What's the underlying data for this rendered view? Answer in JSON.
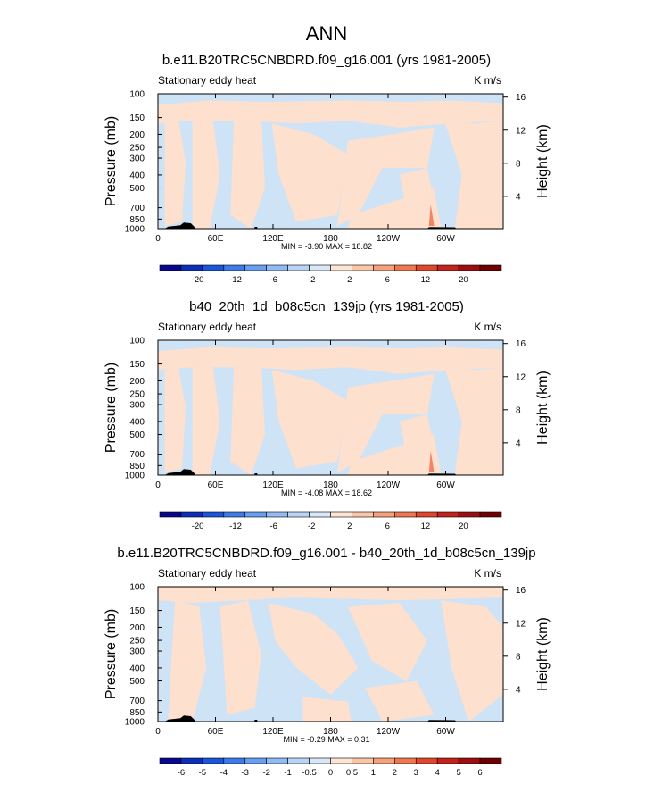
{
  "figure_title": "ANN",
  "colors": {
    "warm_fill": "#fde0cd",
    "cool_fill": "#cfe3f7",
    "warm_strong": "#f06b4a",
    "topo": "#000000"
  },
  "chart_data": [
    {
      "type": "heatmap",
      "title": "b.e11.B20TRC5CNBDRD.f09_g16.001 (yrs 1981-2005)",
      "left_string": "Stationary eddy heat",
      "right_string": "K m/s",
      "xlabel": "",
      "ylabel": "Pressure (mb)",
      "ylabel_right": "Height (km)",
      "x_ticks": [
        "0",
        "60E",
        "120E",
        "180",
        "120W",
        "60W"
      ],
      "y_ticks": [
        "100",
        "150",
        "200",
        "250",
        "300",
        "400",
        "500",
        "700",
        "850",
        "1000"
      ],
      "y_right_ticks": [
        "4",
        "8",
        "12",
        "16"
      ],
      "min_max_text": "MIN =   -3.90  MAX =   18.82",
      "min": -3.9,
      "max": 18.82,
      "colorbar_labels": [
        "-20",
        "-12",
        "-6",
        "-2",
        "2",
        "6",
        "12",
        "20"
      ],
      "colorbar_levels": 16
    },
    {
      "type": "heatmap",
      "title": "b40_20th_1d_b08c5cn_139jp (yrs 1981-2005)",
      "left_string": "Stationary eddy heat",
      "right_string": "K m/s",
      "xlabel": "",
      "ylabel": "Pressure (mb)",
      "ylabel_right": "Height (km)",
      "x_ticks": [
        "0",
        "60E",
        "120E",
        "180",
        "120W",
        "60W"
      ],
      "y_ticks": [
        "100",
        "150",
        "200",
        "250",
        "300",
        "400",
        "500",
        "700",
        "850",
        "1000"
      ],
      "y_right_ticks": [
        "4",
        "8",
        "12",
        "16"
      ],
      "min_max_text": "MIN =   -4.08  MAX =   18.62",
      "min": -4.08,
      "max": 18.62,
      "colorbar_labels": [
        "-20",
        "-12",
        "-6",
        "-2",
        "2",
        "6",
        "12",
        "20"
      ],
      "colorbar_levels": 16
    },
    {
      "type": "heatmap",
      "title": "b.e11.B20TRC5CNBDRD.f09_g16.001 - b40_20th_1d_b08c5cn_139jp",
      "left_string": "Stationary eddy heat",
      "right_string": "K m/s",
      "xlabel": "",
      "ylabel": "Pressure (mb)",
      "ylabel_right": "Height (km)",
      "x_ticks": [
        "0",
        "60E",
        "120E",
        "180",
        "120W",
        "60W"
      ],
      "y_ticks": [
        "100",
        "150",
        "200",
        "250",
        "300",
        "400",
        "500",
        "700",
        "850",
        "1000"
      ],
      "y_right_ticks": [
        "4",
        "8",
        "12",
        "16"
      ],
      "min_max_text": "MIN =   -0.29  MAX =    0.31",
      "min": -0.29,
      "max": 0.31,
      "colorbar_labels": [
        "-6",
        "-5",
        "-4",
        "-3",
        "-2",
        "-1",
        "-0.5",
        "0",
        "0.5",
        "1",
        "2",
        "3",
        "4",
        "5",
        "6"
      ],
      "colorbar_levels": 16
    }
  ]
}
